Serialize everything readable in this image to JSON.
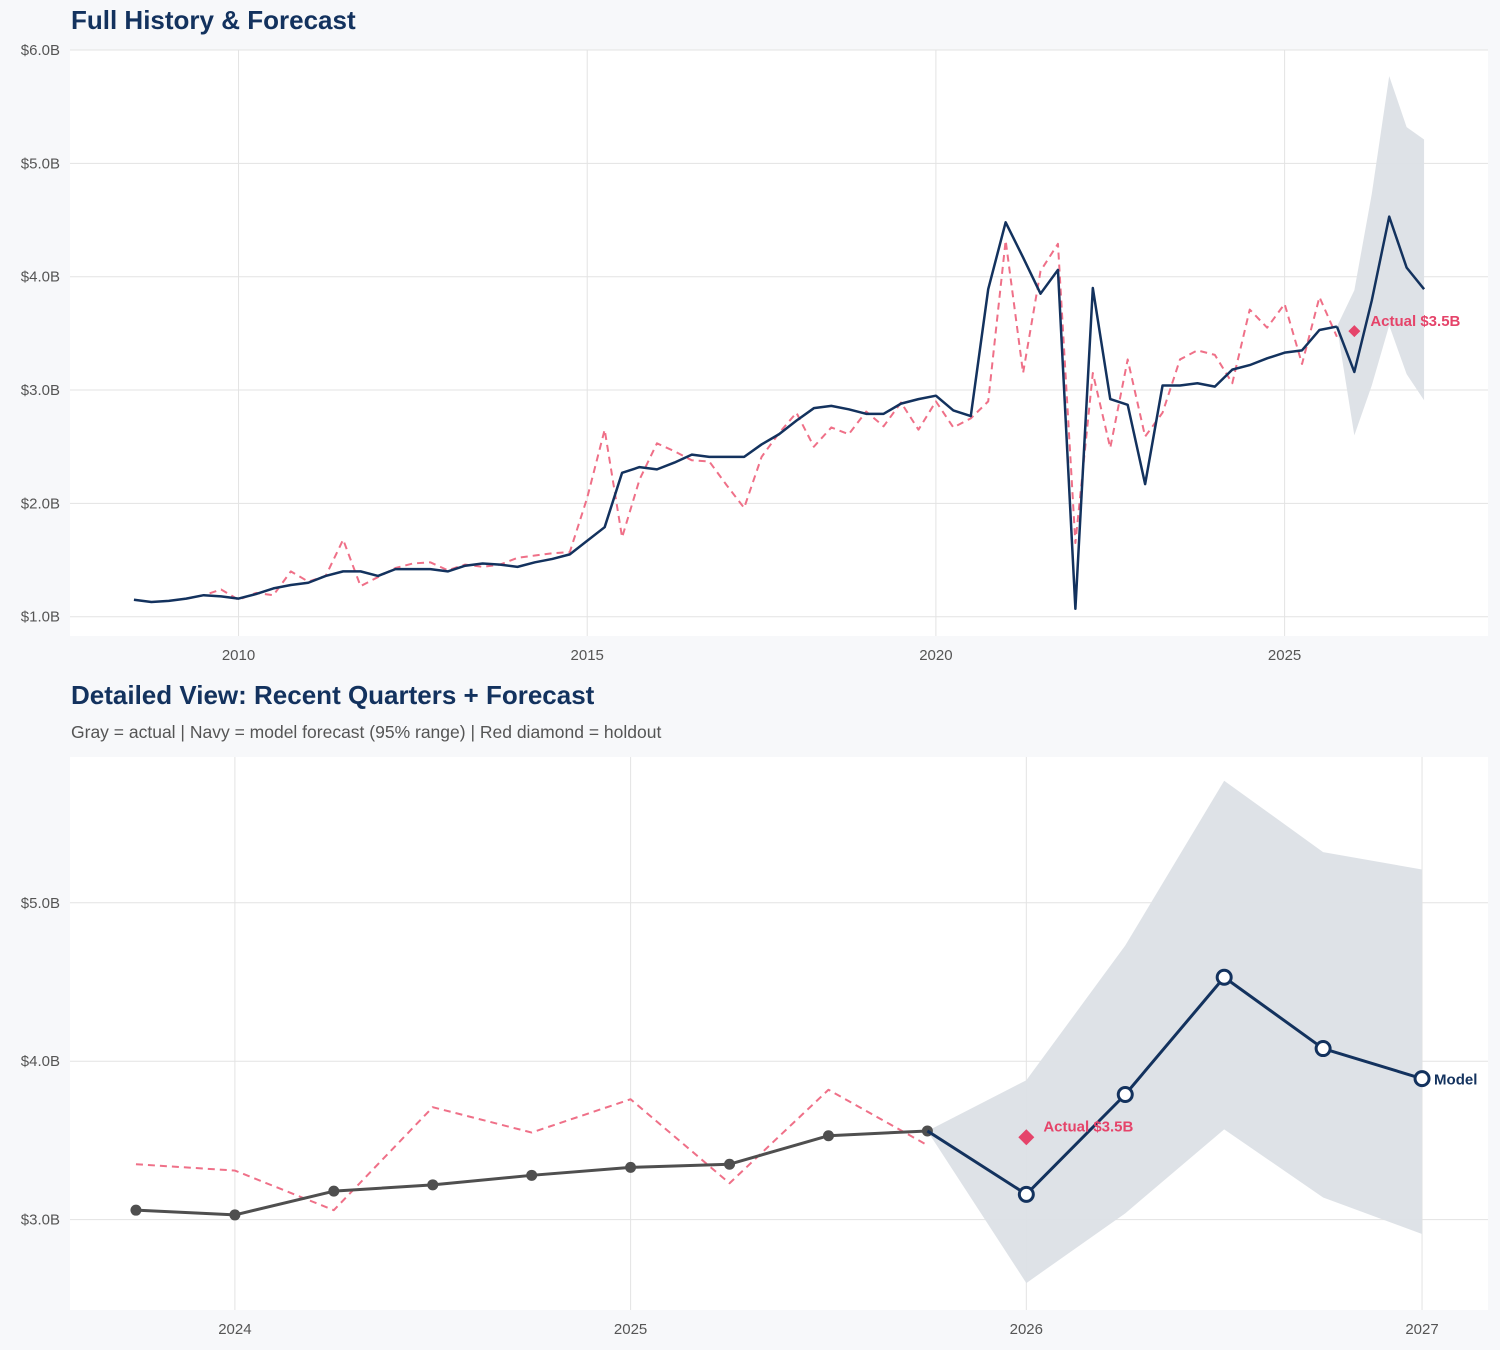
{
  "colors": {
    "navy": "#13325e",
    "gray_actual": "#4f4f4f",
    "red_dashed": "#ef7088",
    "holdout_red": "#e5446a",
    "band": "#dce0e6",
    "grid": "#e3e3e3",
    "plot_background": "#ffffff",
    "page_background": "#f7f8fa"
  },
  "chart_data": [
    {
      "type": "line",
      "title": "Full History & Forecast",
      "xlabel": "",
      "ylabel": "",
      "xlim": [
        "2007-08-01",
        "2027-12-01"
      ],
      "ylim": [
        0.83,
        6.0
      ],
      "grid": true,
      "legend": "none",
      "x_ticks": [
        "2010-01-01",
        "2015-01-01",
        "2020-01-01",
        "2025-01-01"
      ],
      "x_tick_labels": [
        "2010",
        "2015",
        "2020",
        "2025"
      ],
      "y_ticks": [
        1,
        2,
        3,
        4,
        5,
        6
      ],
      "y_tick_labels": [
        "$1.0B",
        "$2.0B",
        "$3.0B",
        "$4.0B",
        "$5.0B",
        "$6.0B"
      ],
      "series": [
        {
          "role": "comparison",
          "style": "dashed",
          "color": "#ef7088",
          "markers": "none",
          "points": [
            [
              "2009-04-01",
              1.16
            ],
            [
              "2009-07-01",
              1.19
            ],
            [
              "2009-10-01",
              1.24
            ],
            [
              "2010-01-01",
              1.15
            ],
            [
              "2010-04-01",
              1.21
            ],
            [
              "2010-07-01",
              1.19
            ],
            [
              "2010-10-01",
              1.4
            ],
            [
              "2011-01-01",
              1.31
            ],
            [
              "2011-04-01",
              1.36
            ],
            [
              "2011-07-01",
              1.68
            ],
            [
              "2011-10-01",
              1.27
            ],
            [
              "2012-01-01",
              1.35
            ],
            [
              "2012-04-01",
              1.43
            ],
            [
              "2012-07-01",
              1.47
            ],
            [
              "2012-10-01",
              1.48
            ],
            [
              "2013-01-01",
              1.41
            ],
            [
              "2013-04-01",
              1.46
            ],
            [
              "2013-07-01",
              1.44
            ],
            [
              "2013-10-01",
              1.46
            ],
            [
              "2014-01-01",
              1.52
            ],
            [
              "2014-04-01",
              1.54
            ],
            [
              "2014-07-01",
              1.56
            ],
            [
              "2014-10-01",
              1.57
            ],
            [
              "2015-01-01",
              2.05
            ],
            [
              "2015-04-01",
              2.65
            ],
            [
              "2015-07-01",
              1.7
            ],
            [
              "2015-10-01",
              2.21
            ],
            [
              "2016-01-01",
              2.53
            ],
            [
              "2016-04-01",
              2.46
            ],
            [
              "2016-07-01",
              2.38
            ],
            [
              "2016-10-01",
              2.37
            ],
            [
              "2017-01-01",
              2.16
            ],
            [
              "2017-04-01",
              1.96
            ],
            [
              "2017-07-01",
              2.41
            ],
            [
              "2017-10-01",
              2.62
            ],
            [
              "2018-01-01",
              2.8
            ],
            [
              "2018-04-01",
              2.5
            ],
            [
              "2018-07-01",
              2.67
            ],
            [
              "2018-10-01",
              2.61
            ],
            [
              "2019-01-01",
              2.81
            ],
            [
              "2019-04-01",
              2.68
            ],
            [
              "2019-07-01",
              2.89
            ],
            [
              "2019-10-01",
              2.65
            ],
            [
              "2020-01-01",
              2.9
            ],
            [
              "2020-04-01",
              2.67
            ],
            [
              "2020-07-01",
              2.75
            ],
            [
              "2020-10-01",
              2.9
            ],
            [
              "2021-01-01",
              4.32
            ],
            [
              "2021-04-01",
              3.15
            ],
            [
              "2021-07-01",
              4.05
            ],
            [
              "2021-10-01",
              4.29
            ],
            [
              "2022-01-01",
              1.65
            ],
            [
              "2022-04-01",
              3.15
            ],
            [
              "2022-07-01",
              2.49
            ],
            [
              "2022-10-01",
              3.27
            ],
            [
              "2023-01-01",
              2.59
            ],
            [
              "2023-04-01",
              2.8
            ],
            [
              "2023-07-01",
              3.27
            ],
            [
              "2023-10-01",
              3.35
            ],
            [
              "2024-01-01",
              3.31
            ],
            [
              "2024-04-01",
              3.06
            ],
            [
              "2024-07-01",
              3.71
            ],
            [
              "2024-10-01",
              3.55
            ],
            [
              "2025-01-01",
              3.76
            ],
            [
              "2025-04-01",
              3.23
            ],
            [
              "2025-07-01",
              3.82
            ],
            [
              "2025-10-01",
              3.47
            ]
          ]
        },
        {
          "role": "actual",
          "style": "solid",
          "color": "#13325e",
          "markers": "none",
          "points": [
            [
              "2008-07-01",
              1.15
            ],
            [
              "2008-10-01",
              1.13
            ],
            [
              "2009-01-01",
              1.14
            ],
            [
              "2009-04-01",
              1.16
            ],
            [
              "2009-07-01",
              1.19
            ],
            [
              "2009-10-01",
              1.18
            ],
            [
              "2010-01-01",
              1.16
            ],
            [
              "2010-04-01",
              1.2
            ],
            [
              "2010-07-01",
              1.25
            ],
            [
              "2010-10-01",
              1.28
            ],
            [
              "2011-01-01",
              1.3
            ],
            [
              "2011-04-01",
              1.36
            ],
            [
              "2011-07-01",
              1.4
            ],
            [
              "2011-10-01",
              1.4
            ],
            [
              "2012-01-01",
              1.36
            ],
            [
              "2012-04-01",
              1.42
            ],
            [
              "2012-07-01",
              1.42
            ],
            [
              "2012-10-01",
              1.42
            ],
            [
              "2013-01-01",
              1.4
            ],
            [
              "2013-04-01",
              1.45
            ],
            [
              "2013-07-01",
              1.47
            ],
            [
              "2013-10-01",
              1.46
            ],
            [
              "2014-01-01",
              1.44
            ],
            [
              "2014-04-01",
              1.48
            ],
            [
              "2014-07-01",
              1.51
            ],
            [
              "2014-10-01",
              1.55
            ],
            [
              "2015-01-01",
              1.67
            ],
            [
              "2015-04-01",
              1.79
            ],
            [
              "2015-07-01",
              2.27
            ],
            [
              "2015-10-01",
              2.32
            ],
            [
              "2016-01-01",
              2.3
            ],
            [
              "2016-04-01",
              2.36
            ],
            [
              "2016-07-01",
              2.43
            ],
            [
              "2016-10-01",
              2.41
            ],
            [
              "2017-01-01",
              2.41
            ],
            [
              "2017-04-01",
              2.41
            ],
            [
              "2017-07-01",
              2.52
            ],
            [
              "2017-10-01",
              2.61
            ],
            [
              "2018-01-01",
              2.73
            ],
            [
              "2018-04-01",
              2.84
            ],
            [
              "2018-07-01",
              2.86
            ],
            [
              "2018-10-01",
              2.83
            ],
            [
              "2019-01-01",
              2.79
            ],
            [
              "2019-04-01",
              2.79
            ],
            [
              "2019-07-01",
              2.88
            ],
            [
              "2019-10-01",
              2.92
            ],
            [
              "2020-01-01",
              2.95
            ],
            [
              "2020-04-01",
              2.82
            ],
            [
              "2020-07-01",
              2.77
            ],
            [
              "2020-10-01",
              3.89
            ],
            [
              "2021-01-01",
              4.48
            ],
            [
              "2021-04-01",
              4.17
            ],
            [
              "2021-07-01",
              3.85
            ],
            [
              "2021-10-01",
              4.06
            ],
            [
              "2022-01-01",
              1.07
            ],
            [
              "2022-04-01",
              3.9
            ],
            [
              "2022-07-01",
              2.92
            ],
            [
              "2022-10-01",
              2.87
            ],
            [
              "2023-01-01",
              2.17
            ],
            [
              "2023-04-01",
              3.04
            ],
            [
              "2023-07-01",
              3.04
            ],
            [
              "2023-10-01",
              3.06
            ],
            [
              "2024-01-01",
              3.03
            ],
            [
              "2024-04-01",
              3.18
            ],
            [
              "2024-07-01",
              3.22
            ],
            [
              "2024-10-01",
              3.28
            ],
            [
              "2025-01-01",
              3.33
            ],
            [
              "2025-04-01",
              3.35
            ],
            [
              "2025-07-01",
              3.53
            ],
            [
              "2025-10-01",
              3.56
            ]
          ]
        },
        {
          "role": "forecast",
          "style": "solid",
          "color": "#13325e",
          "markers": "none",
          "points": [
            [
              "2025-10-01",
              3.56
            ],
            [
              "2026-01-01",
              3.16
            ],
            [
              "2026-04-01",
              3.79
            ],
            [
              "2026-07-01",
              4.53
            ],
            [
              "2026-10-01",
              4.08
            ],
            [
              "2027-01-01",
              3.89
            ]
          ]
        }
      ],
      "band": {
        "label": "95% range",
        "color": "#dce0e6",
        "points": [
          [
            "2025-10-01",
            3.56,
            3.56
          ],
          [
            "2026-01-01",
            2.6,
            3.88
          ],
          [
            "2026-04-01",
            3.04,
            4.73
          ],
          [
            "2026-07-01",
            3.57,
            5.77
          ],
          [
            "2026-10-01",
            3.14,
            5.32
          ],
          [
            "2027-01-01",
            2.91,
            5.21
          ]
        ]
      },
      "holdout": {
        "x": "2026-01-01",
        "y": 3.52,
        "marker": "diamond",
        "color": "#e5446a",
        "label": "Actual $3.5B"
      }
    },
    {
      "type": "line",
      "title": "Detailed View: Recent Quarters + Forecast",
      "subtitle": "Gray = actual  |  Navy = model forecast (95% range)  |  Red diamond = holdout",
      "xlabel": "",
      "ylabel": "",
      "xlim": [
        "2023-08-01",
        "2027-03-01"
      ],
      "ylim": [
        2.43,
        5.92
      ],
      "grid": true,
      "legend": "none",
      "x_ticks": [
        "2024-01-01",
        "2025-01-01",
        "2026-01-01",
        "2027-01-01"
      ],
      "x_tick_labels": [
        "2024",
        "2025",
        "2026",
        "2027"
      ],
      "y_ticks": [
        3,
        4,
        5
      ],
      "y_tick_labels": [
        "$3.0B",
        "$4.0B",
        "$5.0B"
      ],
      "series": [
        {
          "role": "comparison",
          "style": "dashed",
          "color": "#ef7088",
          "markers": "none",
          "points": [
            [
              "2023-10-01",
              3.35
            ],
            [
              "2024-01-01",
              3.31
            ],
            [
              "2024-04-01",
              3.06
            ],
            [
              "2024-07-01",
              3.71
            ],
            [
              "2024-10-01",
              3.55
            ],
            [
              "2025-01-01",
              3.76
            ],
            [
              "2025-04-01",
              3.23
            ],
            [
              "2025-07-01",
              3.82
            ],
            [
              "2025-10-01",
              3.47
            ]
          ]
        },
        {
          "role": "actual",
          "style": "solid",
          "color": "#4f4f4f",
          "markers": "filled",
          "points": [
            [
              "2023-10-01",
              3.06
            ],
            [
              "2024-01-01",
              3.03
            ],
            [
              "2024-04-01",
              3.18
            ],
            [
              "2024-07-01",
              3.22
            ],
            [
              "2024-10-01",
              3.28
            ],
            [
              "2025-01-01",
              3.33
            ],
            [
              "2025-04-01",
              3.35
            ],
            [
              "2025-07-01",
              3.53
            ],
            [
              "2025-10-01",
              3.56
            ]
          ]
        },
        {
          "role": "forecast",
          "style": "solid",
          "color": "#13325e",
          "markers": "hollow",
          "end_label": "Model",
          "points": [
            [
              "2025-10-01",
              3.56
            ],
            [
              "2026-01-01",
              3.16
            ],
            [
              "2026-04-01",
              3.79
            ],
            [
              "2026-07-01",
              4.53
            ],
            [
              "2026-10-01",
              4.08
            ],
            [
              "2027-01-01",
              3.89
            ]
          ]
        }
      ],
      "band": {
        "label": "95% range",
        "color": "#dce0e6",
        "points": [
          [
            "2025-10-01",
            3.56,
            3.56
          ],
          [
            "2026-01-01",
            2.6,
            3.88
          ],
          [
            "2026-04-01",
            3.04,
            4.73
          ],
          [
            "2026-07-01",
            3.57,
            5.77
          ],
          [
            "2026-10-01",
            3.14,
            5.32
          ],
          [
            "2027-01-01",
            2.91,
            5.21
          ]
        ]
      },
      "holdout": {
        "x": "2026-01-01",
        "y": 3.52,
        "marker": "diamond",
        "color": "#e5446a",
        "label": "Actual $3.5B"
      }
    }
  ]
}
